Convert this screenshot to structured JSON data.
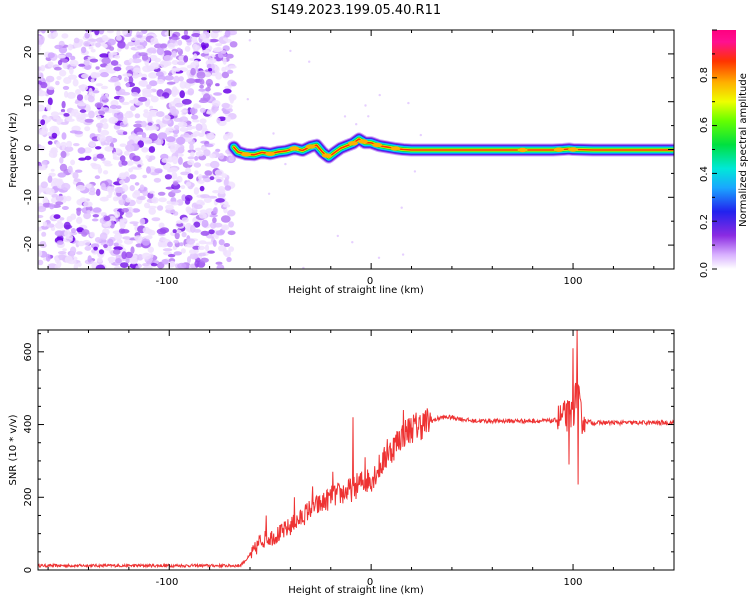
{
  "title": "S149.2023.199.05.40.R11",
  "chart_data": [
    {
      "type": "heatmap",
      "xlabel": "Height of straight line (km)",
      "ylabel": "Frequency (Hz)",
      "xlim": [
        -165,
        150
      ],
      "ylim": [
        -25,
        25
      ],
      "xticks": [
        "-100",
        "0",
        "100"
      ],
      "yticks": [
        "20",
        "10",
        "0",
        "-10",
        "-20"
      ],
      "colorbar": {
        "label": "Normalized spectral amplitude",
        "range": [
          0,
          1
        ],
        "ticks": [
          "0.0",
          "0.2",
          "0.4",
          "0.6",
          "0.8"
        ],
        "colormap": "gist_ncar_r-like (white→purple→blue→cyan→green→yellow→orange→red→magenta)"
      },
      "noise_region_x": [
        -165,
        -68
      ],
      "signal_ridge": {
        "x": [
          -68,
          -66,
          -62,
          -58,
          -54,
          -50,
          -46,
          -42,
          -38,
          -34,
          -30,
          -27,
          -24,
          -21,
          -18,
          -15,
          -12,
          -9,
          -6,
          -3,
          0,
          4,
          8,
          12,
          16,
          20,
          40,
          60,
          70,
          80,
          90,
          95,
          98,
          100,
          110,
          130,
          150
        ],
        "y": [
          0.5,
          -0.5,
          -1.0,
          -1.1,
          -0.6,
          -0.9,
          -0.5,
          -0.3,
          0.2,
          -0.2,
          0.6,
          0.9,
          -0.6,
          -1.6,
          -0.6,
          0.3,
          0.8,
          1.3,
          2.2,
          1.4,
          1.4,
          0.8,
          0.5,
          0.2,
          0.0,
          -0.1,
          -0.1,
          -0.1,
          -0.1,
          -0.1,
          -0.1,
          0.0,
          0.1,
          0.0,
          -0.1,
          -0.1,
          -0.1
        ]
      }
    },
    {
      "type": "line",
      "xlabel": "Height of straight line (km)",
      "ylabel": "SNR (10 * v/v)",
      "xlim": [
        -165,
        150
      ],
      "ylim": [
        0,
        660
      ],
      "xticks": [
        "-100",
        "0",
        "100"
      ],
      "yticks": [
        "0",
        "200",
        "400",
        "600"
      ],
      "series": [
        {
          "color": "#ee3333",
          "x": [
            -165,
            -120,
            -80,
            -65,
            -58,
            -55,
            -50,
            -45,
            -40,
            -35,
            -30,
            -25,
            -20,
            -15,
            -10,
            -5,
            0,
            5,
            10,
            15,
            20,
            25,
            30,
            35,
            40,
            45,
            50,
            60,
            70,
            80,
            85,
            90,
            95,
            100,
            102,
            104,
            106,
            110,
            120,
            130,
            140,
            150
          ],
          "y": [
            12,
            12,
            12,
            12,
            50,
            80,
            90,
            100,
            120,
            140,
            170,
            180,
            200,
            210,
            220,
            240,
            250,
            290,
            330,
            370,
            390,
            400,
            410,
            420,
            420,
            415,
            410,
            410,
            410,
            410,
            410,
            410,
            420,
            430,
            500,
            420,
            410,
            405,
            405,
            405,
            405,
            405
          ],
          "spikes": [
            {
              "x": -52,
              "y": 150
            },
            {
              "x": -38,
              "y": 200
            },
            {
              "x": -29,
              "y": 230
            },
            {
              "x": -19,
              "y": 270
            },
            {
              "x": -9,
              "y": 420
            },
            {
              "x": -3,
              "y": 310
            },
            {
              "x": 8,
              "y": 360
            },
            {
              "x": 16,
              "y": 440
            },
            {
              "x": 100,
              "y": 610
            },
            {
              "x": 102,
              "y": 660
            },
            {
              "x": 102.5,
              "y": 235
            },
            {
              "x": 98,
              "y": 290
            }
          ]
        }
      ]
    }
  ]
}
